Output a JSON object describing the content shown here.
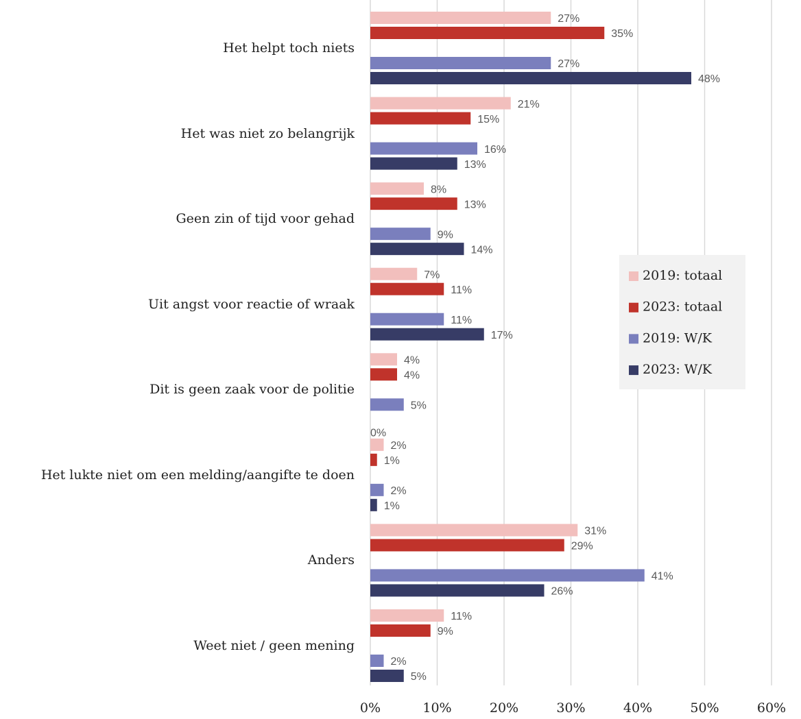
{
  "chart_data": {
    "type": "hbar",
    "categories": [
      "Het helpt toch niets",
      "Het was niet zo belangrijk",
      "Geen zin of tijd voor gehad",
      "Uit angst voor reactie of wraak",
      "Dit is geen zaak voor de politie",
      "Het lukte niet om een melding/aangifte te doen",
      "Anders",
      "Weet niet / geen mening"
    ],
    "series": [
      {
        "name": "2019: totaal",
        "color": "#f2bfbd",
        "values": [
          27,
          21,
          8,
          7,
          4,
          2,
          31,
          11
        ],
        "value_labels": [
          "27%",
          "21%",
          "8%",
          "7%",
          "4%",
          "2%",
          "31%",
          "11%"
        ]
      },
      {
        "name": "2023: totaal",
        "color": "#c0332b",
        "values": [
          35,
          15,
          13,
          11,
          4,
          1,
          29,
          9
        ],
        "value_labels": [
          "35%",
          "15%",
          "13%",
          "11%",
          "4%",
          "1%",
          "29%",
          "9%"
        ]
      },
      {
        "name": "2019: W/K",
        "color": "#7a7fbd",
        "values": [
          27,
          16,
          9,
          11,
          5,
          2,
          41,
          2
        ],
        "value_labels": [
          "27%",
          "16%",
          "9%",
          "11%",
          "5%",
          "2%",
          "41%",
          "2%"
        ]
      },
      {
        "name": "2023: W/K",
        "color": "#373c66",
        "values": [
          48,
          13,
          14,
          17,
          0,
          1,
          26,
          5
        ],
        "value_labels": [
          "48%",
          "13%",
          "14%",
          "17%",
          "0%",
          "1%",
          "26%",
          "5%"
        ]
      }
    ],
    "xlim": [
      0,
      60
    ],
    "xticks": [
      {
        "value": 0,
        "label": "0%"
      },
      {
        "value": 10,
        "label": "10%"
      },
      {
        "value": 20,
        "label": "20%"
      },
      {
        "value": 30,
        "label": "30%"
      },
      {
        "value": 40,
        "label": "40%"
      },
      {
        "value": 50,
        "label": "50%"
      },
      {
        "value": 60,
        "label": "60%"
      }
    ],
    "grid": true,
    "legend": "right"
  }
}
